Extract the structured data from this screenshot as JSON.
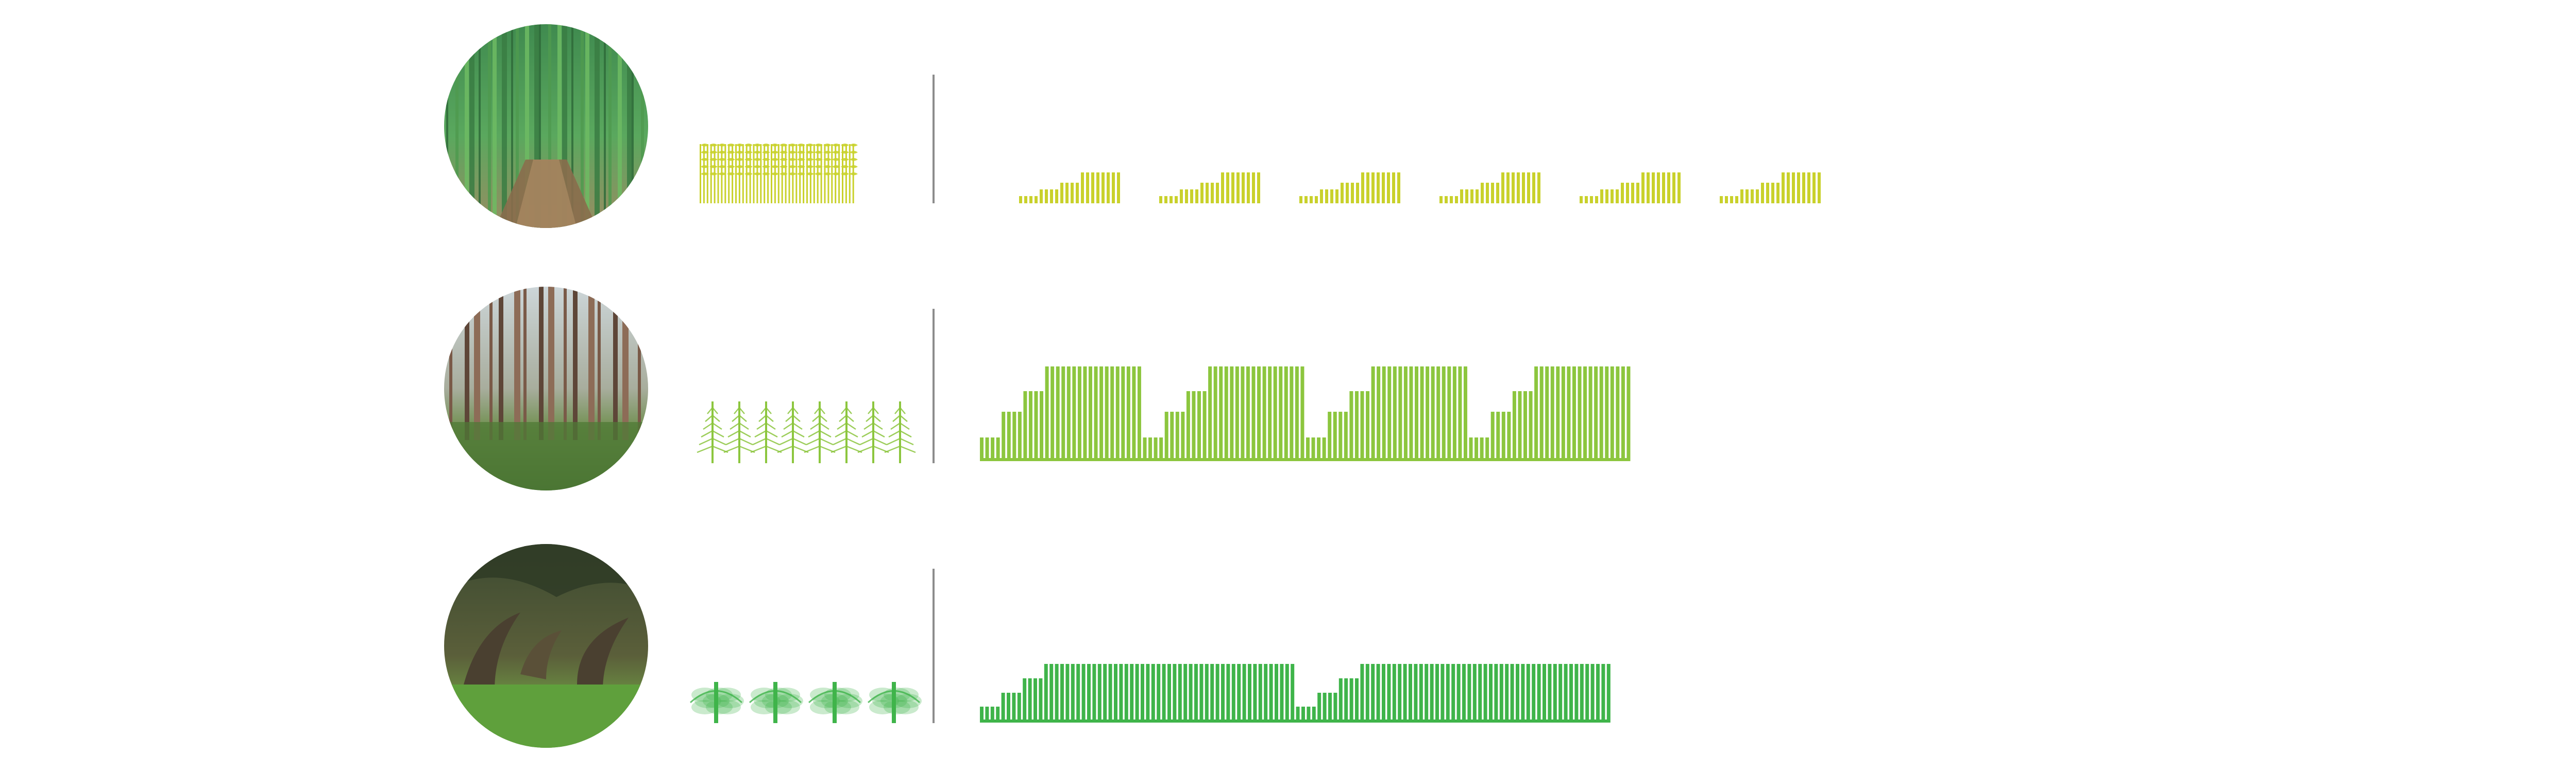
{
  "colors": {
    "background": "#ffffff",
    "divider": "#8c8c8c",
    "row1_accent": "#c9d12b",
    "row2_accent": "#8cc63e",
    "row3_accent": "#3fb44a"
  },
  "rows": [
    {
      "photo": "bamboo-forest-photo",
      "icon": "bamboo-cluster-icon",
      "accent": "#c9d12b",
      "pattern": {
        "repeats": 6,
        "step_levels": [
          1,
          2,
          3,
          4
        ],
        "bars_per_step": [
          4,
          4,
          4,
          8
        ],
        "has_baseline": false
      }
    },
    {
      "photo": "pine-forest-photo",
      "icon": "pine-tree-icon",
      "icon_count": 8,
      "accent": "#8cc63e",
      "pattern": {
        "repeats": 4,
        "step_levels": [
          1,
          2,
          3,
          4
        ],
        "bars_per_step": [
          4,
          4,
          4,
          18
        ],
        "has_baseline": true
      }
    },
    {
      "photo": "live-oak-alley-photo",
      "icon": "oak-tree-icon",
      "icon_count": 4,
      "accent": "#3fb44a",
      "pattern": {
        "repeats": 2,
        "step_levels": [
          1,
          2,
          3,
          4
        ],
        "bars_per_step": [
          4,
          4,
          4,
          47
        ],
        "has_baseline": true
      }
    }
  ]
}
